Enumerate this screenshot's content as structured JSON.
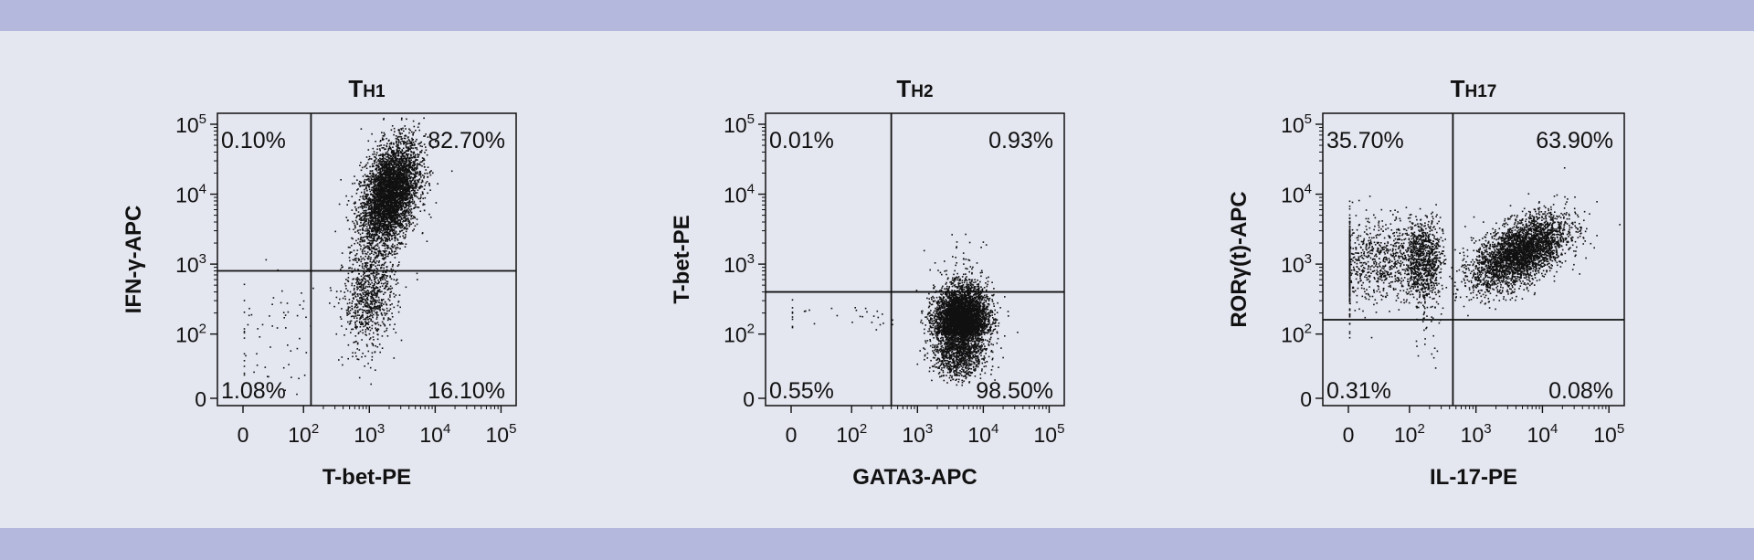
{
  "colors": {
    "band": "#b3b8dc",
    "background": "#e4e6f0",
    "dots": "#111111"
  },
  "chart_data": [
    {
      "type": "scatter",
      "title_main": "T",
      "title_sub": "H1",
      "xlabel": "T-bet-PE",
      "ylabel": "IFN-γ-APC",
      "x_ticks": [
        {
          "base": "0",
          "exp": ""
        },
        {
          "base": "10",
          "exp": "2"
        },
        {
          "base": "10",
          "exp": "3"
        },
        {
          "base": "10",
          "exp": "4"
        },
        {
          "base": "10",
          "exp": "5"
        }
      ],
      "y_ticks": [
        {
          "base": "0",
          "exp": ""
        },
        {
          "base": "10",
          "exp": "2"
        },
        {
          "base": "10",
          "exp": "3"
        },
        {
          "base": "10",
          "exp": "4"
        },
        {
          "base": "10",
          "exp": "5"
        }
      ],
      "scale": "biexponential",
      "quadrant_gate": {
        "x": 130,
        "y": 800
      },
      "quadrants": {
        "top_left": "0.10%",
        "top_right": "82.70%",
        "bottom_left": "1.08%",
        "bottom_right": "16.10%"
      },
      "populations": [
        {
          "x_center": 2000,
          "x_spread": 0.22,
          "y_center": 10000,
          "y_spread": 0.35,
          "share": 0.827,
          "tilt": 0.7
        },
        {
          "x_center": 1000,
          "x_spread": 0.2,
          "y_center": 350,
          "y_spread": 0.35,
          "share": 0.161,
          "tilt": 0.3
        },
        {
          "x_center": 40,
          "x_spread": 0.4,
          "y_center": 120,
          "y_spread": 0.4,
          "share": 0.012,
          "tilt": 0
        }
      ]
    },
    {
      "type": "scatter",
      "title_main": "T",
      "title_sub": "H2",
      "xlabel": "GATA3-APC",
      "ylabel": "T-bet-PE",
      "x_ticks": [
        {
          "base": "0",
          "exp": ""
        },
        {
          "base": "10",
          "exp": "2"
        },
        {
          "base": "10",
          "exp": "3"
        },
        {
          "base": "10",
          "exp": "4"
        },
        {
          "base": "10",
          "exp": "5"
        }
      ],
      "y_ticks": [
        {
          "base": "0",
          "exp": ""
        },
        {
          "base": "10",
          "exp": "2"
        },
        {
          "base": "10",
          "exp": "3"
        },
        {
          "base": "10",
          "exp": "4"
        },
        {
          "base": "10",
          "exp": "5"
        }
      ],
      "scale": "biexponential",
      "quadrant_gate": {
        "x": 400,
        "y": 400
      },
      "quadrants": {
        "top_left": "0.01%",
        "top_right": "0.93%",
        "bottom_left": "0.55%",
        "bottom_right": "98.50%"
      },
      "populations": [
        {
          "x_center": 4500,
          "x_spread": 0.2,
          "y_center": 150,
          "y_spread": 0.25,
          "share": 0.985,
          "tilt": 0.1
        },
        {
          "x_center": 5000,
          "x_spread": 0.2,
          "y_center": 800,
          "y_spread": 0.25,
          "share": 0.009,
          "tilt": 0
        },
        {
          "x_center": 100,
          "x_spread": 0.5,
          "y_center": 180,
          "y_spread": 0.1,
          "share": 0.006,
          "tilt": 0
        }
      ]
    },
    {
      "type": "scatter",
      "title_main": "T",
      "title_sub": "H17",
      "xlabel": "IL-17-PE",
      "ylabel": "RORγ(t)-APC",
      "x_ticks": [
        {
          "base": "0",
          "exp": ""
        },
        {
          "base": "10",
          "exp": "2"
        },
        {
          "base": "10",
          "exp": "3"
        },
        {
          "base": "10",
          "exp": "4"
        },
        {
          "base": "10",
          "exp": "5"
        }
      ],
      "y_ticks": [
        {
          "base": "0",
          "exp": ""
        },
        {
          "base": "10",
          "exp": "2"
        },
        {
          "base": "10",
          "exp": "3"
        },
        {
          "base": "10",
          "exp": "4"
        },
        {
          "base": "10",
          "exp": "5"
        }
      ],
      "scale": "biexponential",
      "quadrant_gate": {
        "x": 450,
        "y": 160
      },
      "quadrants": {
        "top_left": "35.70%",
        "top_right": "63.90%",
        "bottom_left": "0.31%",
        "bottom_right": "0.08%"
      },
      "populations": [
        {
          "x_center": 100,
          "x_spread": 0.35,
          "y_center": 1100,
          "y_spread": 0.25,
          "share": 0.357,
          "tilt": 0.5
        },
        {
          "x_center": 4500,
          "x_spread": 0.35,
          "y_center": 1500,
          "y_spread": 0.22,
          "share": 0.639,
          "tilt": 0.4
        },
        {
          "x_center": 120,
          "x_spread": 0.3,
          "y_center": 100,
          "y_spread": 0.15,
          "share": 0.004,
          "tilt": 0
        }
      ]
    }
  ]
}
